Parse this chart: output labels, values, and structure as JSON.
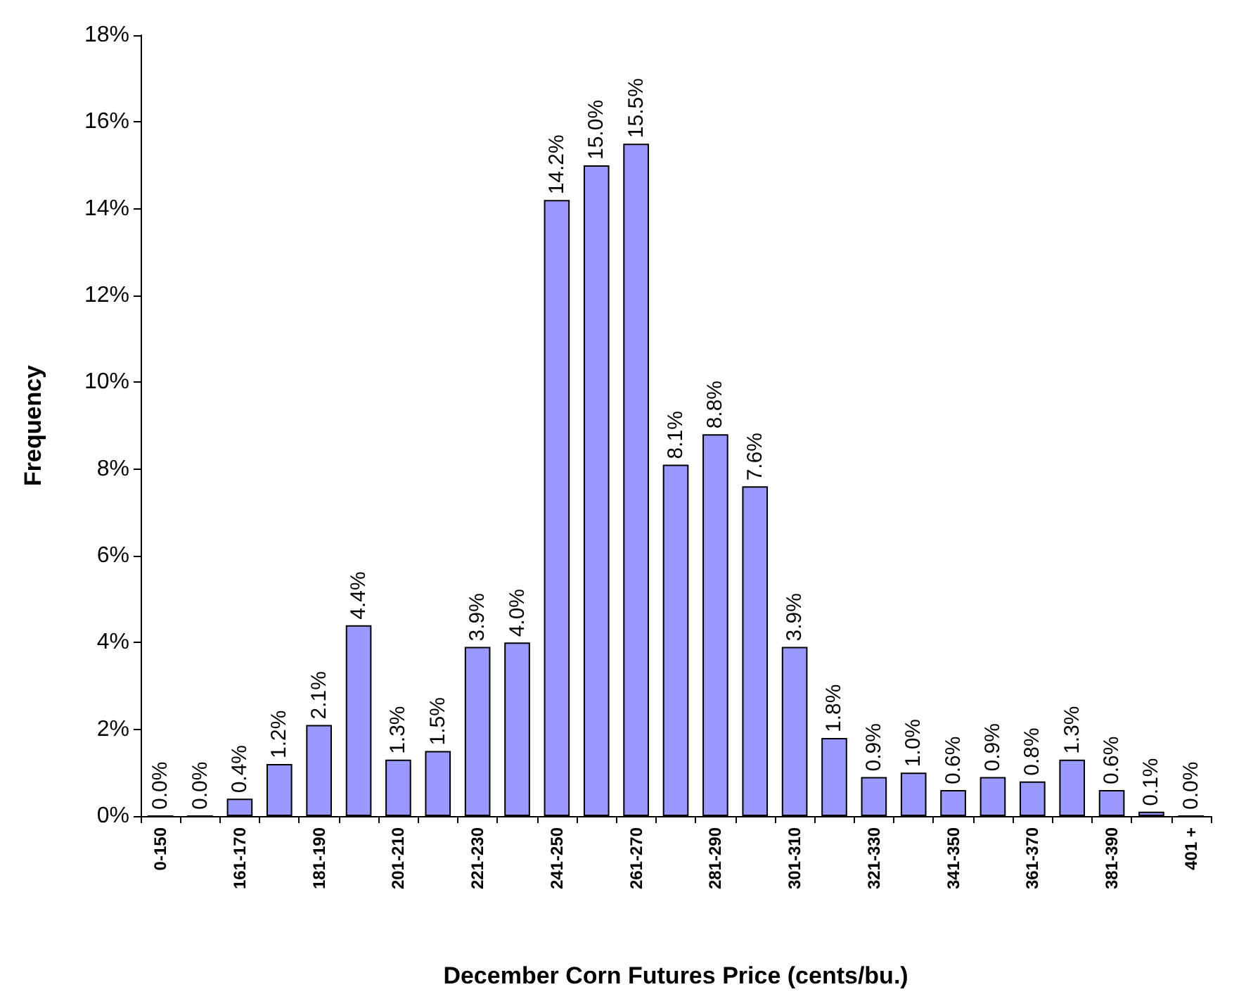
{
  "chart_data": {
    "type": "bar",
    "xlabel": "December Corn Futures Price (cents/bu.)",
    "ylabel": "Frequency",
    "categories": [
      "0-150",
      null,
      "161-170",
      null,
      "181-190",
      null,
      "201-210",
      null,
      "221-230",
      null,
      "241-250",
      null,
      "261-270",
      null,
      "281-290",
      null,
      "301-310",
      null,
      "321-330",
      null,
      "341-350",
      null,
      "361-370",
      null,
      "381-390",
      null,
      "401 +"
    ],
    "values": [
      0.0,
      0.0,
      0.4,
      1.2,
      2.1,
      4.4,
      1.3,
      1.5,
      3.9,
      4.0,
      14.2,
      15.0,
      15.5,
      8.1,
      8.8,
      7.6,
      3.9,
      1.8,
      0.9,
      1.0,
      0.6,
      0.9,
      0.8,
      1.3,
      0.6,
      0.1,
      0.0
    ],
    "value_labels": [
      "0.0%",
      "0.0%",
      "0.4%",
      "1.2%",
      "2.1%",
      "4.4%",
      "1.3%",
      "1.5%",
      "3.9%",
      "4.0%",
      "14.2%",
      "15.0%",
      "15.5%",
      "8.1%",
      "8.8%",
      "7.6%",
      "3.9%",
      "1.8%",
      "0.9%",
      "1.0%",
      "0.6%",
      "0.9%",
      "0.8%",
      "1.3%",
      "0.6%",
      "0.1%",
      "0.0%"
    ],
    "color": "#9999ff",
    "ylim": [
      0,
      18
    ],
    "yticks": [
      {
        "value": 0,
        "label": "0%"
      },
      {
        "value": 2,
        "label": "2%"
      },
      {
        "value": 4,
        "label": "4%"
      },
      {
        "value": 6,
        "label": "6%"
      },
      {
        "value": 8,
        "label": "8%"
      },
      {
        "value": 10,
        "label": "10%"
      },
      {
        "value": 12,
        "label": "12%"
      },
      {
        "value": 14,
        "label": "14%"
      },
      {
        "value": 16,
        "label": "16%"
      },
      {
        "value": 18,
        "label": "18%"
      }
    ],
    "grid": false
  }
}
